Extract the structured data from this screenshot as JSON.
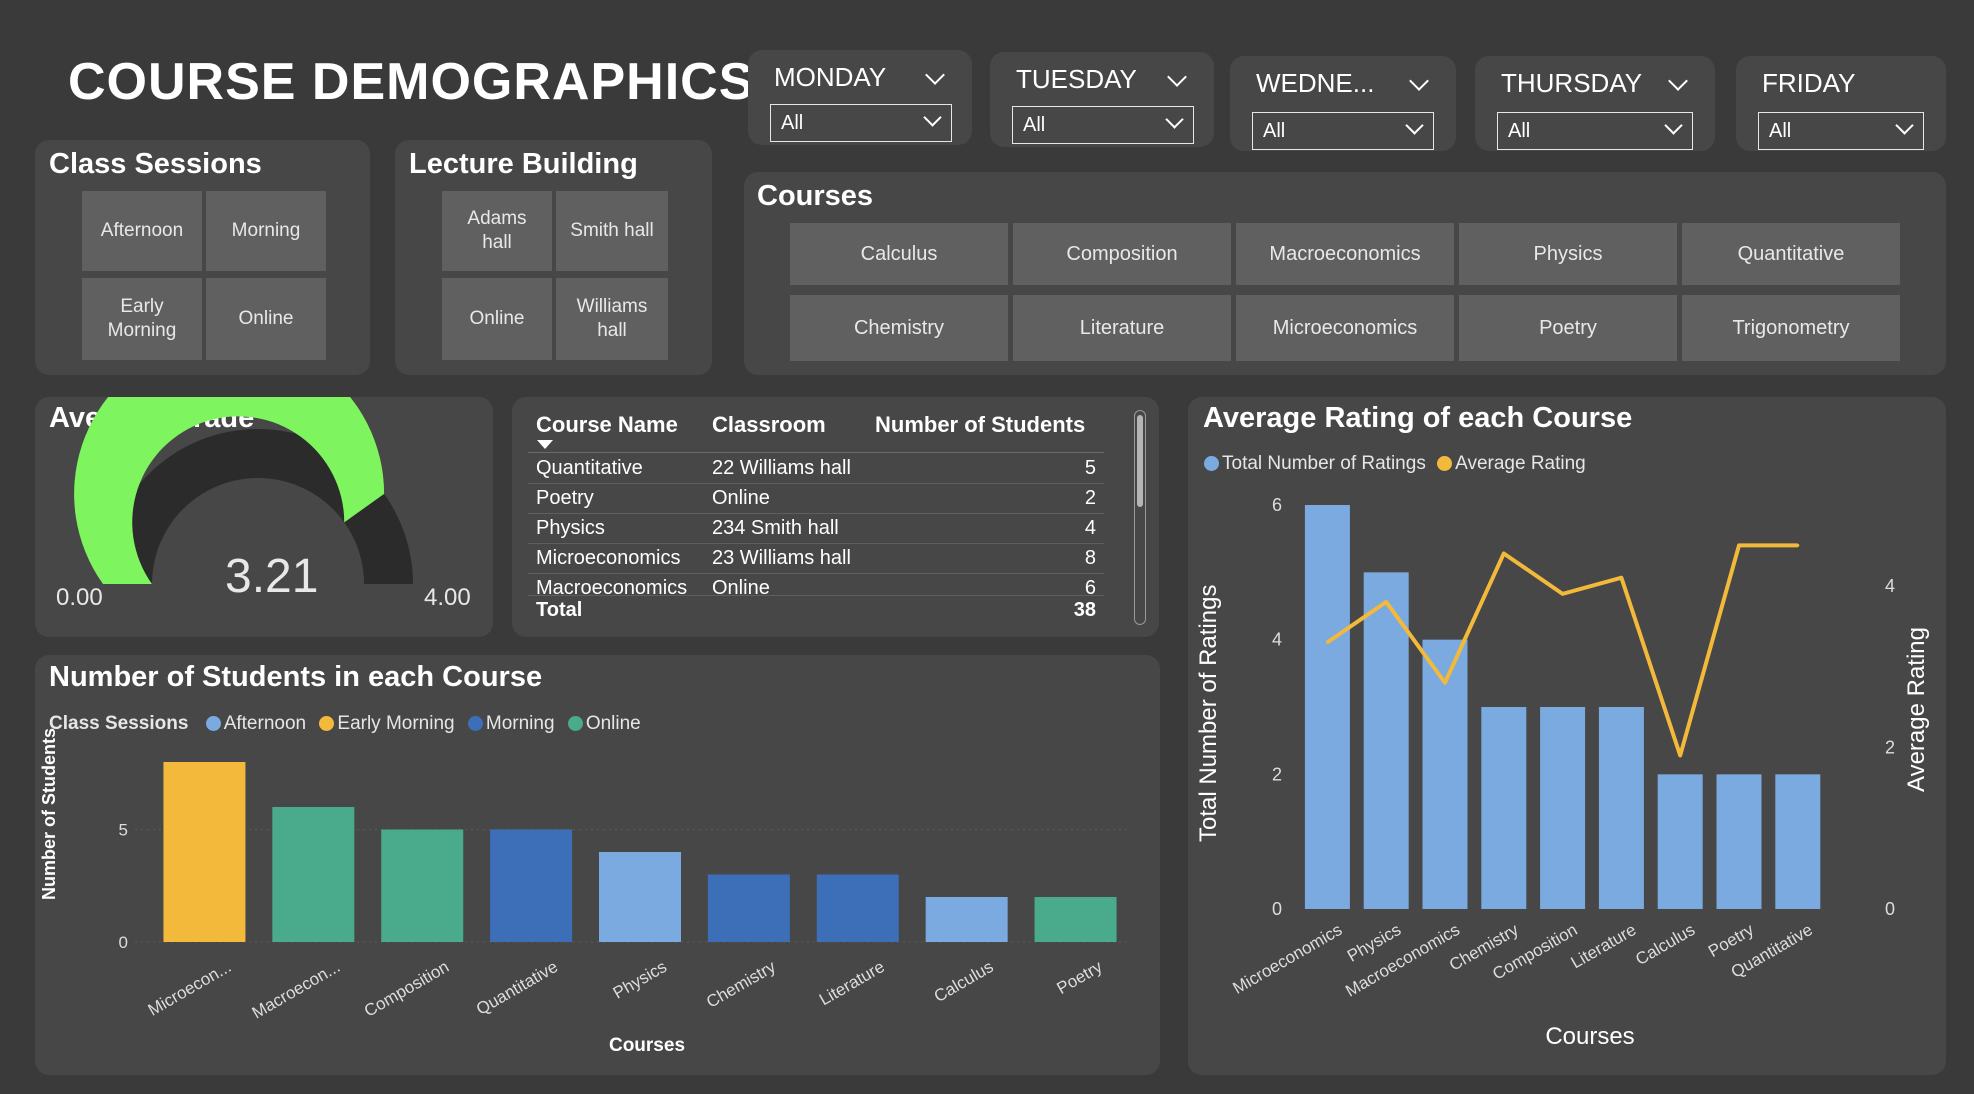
{
  "page_title": "COURSE DEMOGRAPHICS",
  "day_slicers": [
    {
      "label": "MONDAY",
      "value": "All"
    },
    {
      "label": "TUESDAY",
      "value": "All"
    },
    {
      "label": "WEDNE...",
      "value": "All"
    },
    {
      "label": "THURSDAY",
      "value": "All"
    },
    {
      "label": "FRIDAY",
      "value": "All"
    }
  ],
  "class_sessions": {
    "title": "Class Sessions",
    "items": [
      "Afternoon",
      "Morning",
      "Early Morning",
      "Online"
    ]
  },
  "lecture_building": {
    "title": "Lecture Building",
    "items": [
      "Adams hall",
      "Smith hall",
      "Online",
      "Williams hall"
    ]
  },
  "courses_slicer": {
    "title": "Courses",
    "items": [
      "Calculus",
      "Composition",
      "Macroeconomics",
      "Physics",
      "Quantitative",
      "Chemistry",
      "Literature",
      "Microeconomics",
      "Poetry",
      "Trigonometry"
    ]
  },
  "average_grade": {
    "title": "Average Grade",
    "value": 3.21,
    "value_label": "3.21",
    "min_label": "0.00",
    "max_label": "4.00",
    "min": 0,
    "max": 4,
    "fill_color": "#7ef55f",
    "track_color": "#2b2b2b"
  },
  "table": {
    "columns": [
      "Course Name",
      "Classroom",
      "Number of Students"
    ],
    "rows": [
      [
        "Quantitative",
        "22 Williams hall",
        "5"
      ],
      [
        "Poetry",
        "Online",
        "2"
      ],
      [
        "Physics",
        "234 Smith hall",
        "4"
      ],
      [
        "Microeconomics",
        "23 Williams hall",
        "8"
      ],
      [
        "Macroeconomics",
        "Online",
        "6"
      ]
    ],
    "total_label": "Total",
    "total_value": "38"
  },
  "students_chart": {
    "title": "Number of Students in each Course",
    "legend_title": "Class Sessions",
    "legend": [
      {
        "name": "Afternoon",
        "color": "#7aaae0"
      },
      {
        "name": "Early Morning",
        "color": "#f2b93b"
      },
      {
        "name": "Morning",
        "color": "#3c6fb8"
      },
      {
        "name": "Online",
        "color": "#4aaa8c"
      }
    ]
  },
  "rating_chart": {
    "title": "Average Rating of each Course",
    "legend": [
      {
        "name": "Total Number of Ratings",
        "color": "#7aaae0"
      },
      {
        "name": "Average Rating",
        "color": "#f2b93b"
      }
    ]
  },
  "chart_data": [
    {
      "type": "bar",
      "title": "Number of Students in each Course",
      "xlabel": "Courses",
      "ylabel": "Number of Students",
      "ylim": [
        0,
        8
      ],
      "yticks": [
        "0",
        "5"
      ],
      "categories": [
        "Microecon...",
        "Macroecon...",
        "Composition",
        "Quantitative",
        "Physics",
        "Chemistry",
        "Literature",
        "Calculus",
        "Poetry"
      ],
      "values": [
        8,
        6,
        5,
        5,
        4,
        3,
        3,
        2,
        2
      ],
      "sessions": [
        "Early Morning",
        "Online",
        "Online",
        "Morning",
        "Afternoon",
        "Morning",
        "Morning",
        "Afternoon",
        "Online"
      ],
      "colors": [
        "#f2b93b",
        "#4aaa8c",
        "#4aaa8c",
        "#3c6fb8",
        "#7aaae0",
        "#3c6fb8",
        "#3c6fb8",
        "#7aaae0",
        "#4aaa8c"
      ]
    },
    {
      "type": "bar+line",
      "title": "Average Rating of each Course",
      "xlabel": "Courses",
      "ylabel": "Total Number of Ratings",
      "y2label": "Average Rating",
      "ylim": [
        0,
        6
      ],
      "y2lim": [
        0,
        5
      ],
      "yticks": [
        "0",
        "2",
        "4",
        "6"
      ],
      "y2ticks": [
        "0",
        "2",
        "4"
      ],
      "categories": [
        "Microeconomics",
        "Physics",
        "Macroeconomics",
        "Chemistry",
        "Composition",
        "Literature",
        "Calculus",
        "Poetry",
        "Quantitative"
      ],
      "series": [
        {
          "name": "Total Number of Ratings",
          "kind": "bar",
          "values": [
            6,
            5,
            4,
            3,
            3,
            3,
            2,
            2,
            2
          ]
        },
        {
          "name": "Average Rating",
          "kind": "line",
          "values": [
            3.3,
            3.8,
            2.8,
            4.4,
            3.9,
            4.1,
            1.9,
            4.5,
            4.5
          ]
        }
      ]
    }
  ]
}
